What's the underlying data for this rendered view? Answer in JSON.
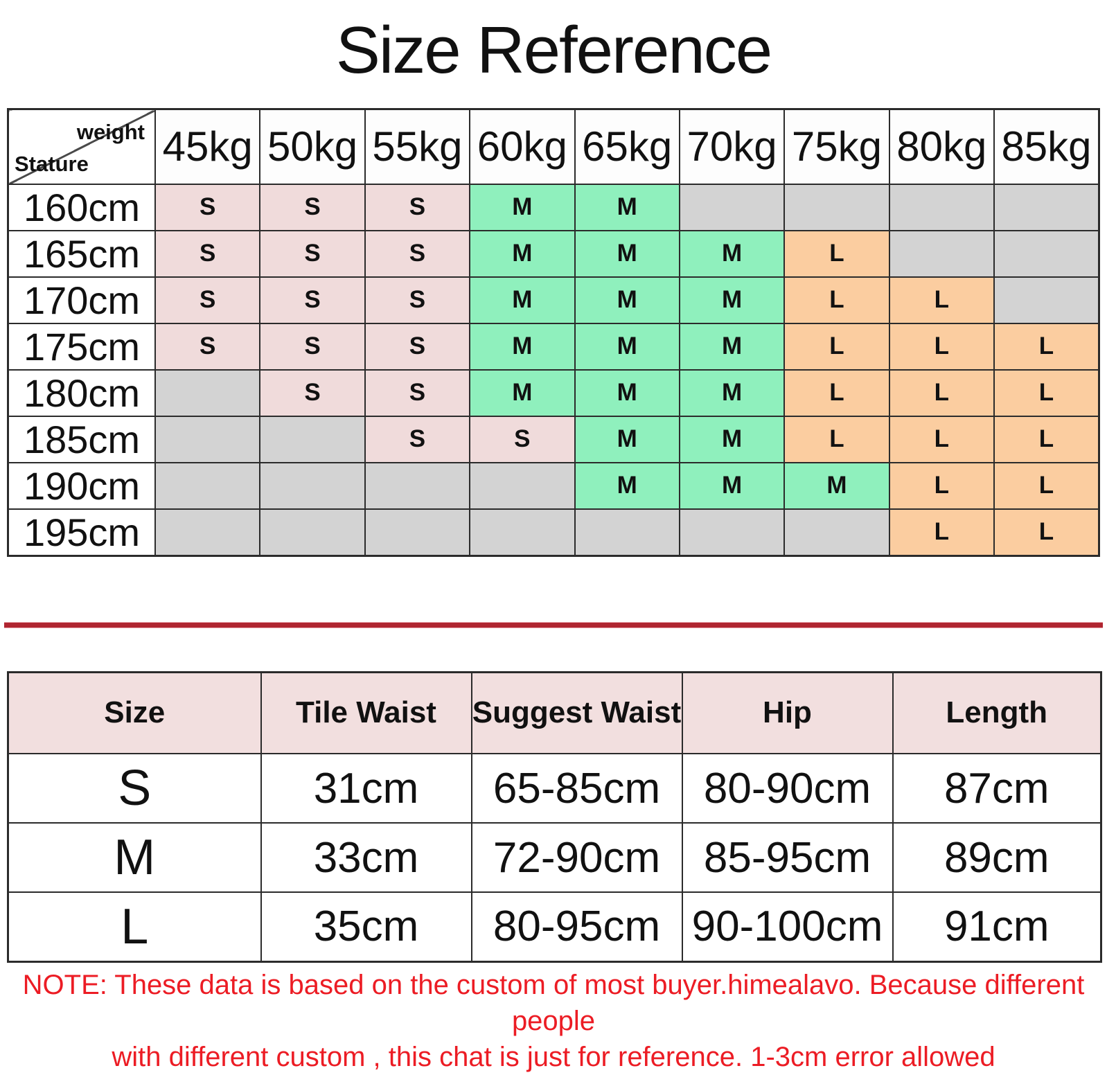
{
  "page": {
    "title": "Size Reference"
  },
  "colors": {
    "pink": "#f0dbdb",
    "green": "#8ff0bd",
    "orange": "#fbcda0",
    "gray": "#d3d3d3",
    "white": "#ffffff",
    "header_pink": "#f2dfdf",
    "border": "#2b2b2b",
    "red": "#b02530",
    "note_red": "#ec1c24"
  },
  "chart_data": [
    {
      "type": "table",
      "title": "Size Reference",
      "corner": {
        "top_right": "weight",
        "bottom_left": "Stature"
      },
      "columns": [
        "45kg",
        "50kg",
        "55kg",
        "60kg",
        "65kg",
        "70kg",
        "75kg",
        "80kg",
        "85kg"
      ],
      "rows": [
        {
          "stature": "160cm",
          "cells": [
            {
              "label": "S",
              "color": "pink"
            },
            {
              "label": "S",
              "color": "pink"
            },
            {
              "label": "S",
              "color": "pink"
            },
            {
              "label": "M",
              "color": "green"
            },
            {
              "label": "M",
              "color": "green"
            },
            {
              "label": "",
              "color": "gray"
            },
            {
              "label": "",
              "color": "gray"
            },
            {
              "label": "",
              "color": "gray"
            },
            {
              "label": "",
              "color": "gray"
            }
          ]
        },
        {
          "stature": "165cm",
          "cells": [
            {
              "label": "S",
              "color": "pink"
            },
            {
              "label": "S",
              "color": "pink"
            },
            {
              "label": "S",
              "color": "pink"
            },
            {
              "label": "M",
              "color": "green"
            },
            {
              "label": "M",
              "color": "green"
            },
            {
              "label": "M",
              "color": "green"
            },
            {
              "label": "L",
              "color": "orange"
            },
            {
              "label": "",
              "color": "gray"
            },
            {
              "label": "",
              "color": "gray"
            }
          ]
        },
        {
          "stature": "170cm",
          "cells": [
            {
              "label": "S",
              "color": "pink"
            },
            {
              "label": "S",
              "color": "pink"
            },
            {
              "label": "S",
              "color": "pink"
            },
            {
              "label": "M",
              "color": "green"
            },
            {
              "label": "M",
              "color": "green"
            },
            {
              "label": "M",
              "color": "green"
            },
            {
              "label": "L",
              "color": "orange"
            },
            {
              "label": "L",
              "color": "orange"
            },
            {
              "label": "",
              "color": "gray"
            }
          ]
        },
        {
          "stature": "175cm",
          "cells": [
            {
              "label": "S",
              "color": "pink"
            },
            {
              "label": "S",
              "color": "pink"
            },
            {
              "label": "S",
              "color": "pink"
            },
            {
              "label": "M",
              "color": "green"
            },
            {
              "label": "M",
              "color": "green"
            },
            {
              "label": "M",
              "color": "green"
            },
            {
              "label": "L",
              "color": "orange"
            },
            {
              "label": "L",
              "color": "orange"
            },
            {
              "label": "L",
              "color": "orange"
            }
          ]
        },
        {
          "stature": "180cm",
          "cells": [
            {
              "label": "",
              "color": "gray"
            },
            {
              "label": "S",
              "color": "pink"
            },
            {
              "label": "S",
              "color": "pink"
            },
            {
              "label": "M",
              "color": "green"
            },
            {
              "label": "M",
              "color": "green"
            },
            {
              "label": "M",
              "color": "green"
            },
            {
              "label": "L",
              "color": "orange"
            },
            {
              "label": "L",
              "color": "orange"
            },
            {
              "label": "L",
              "color": "orange"
            }
          ]
        },
        {
          "stature": "185cm",
          "cells": [
            {
              "label": "",
              "color": "gray"
            },
            {
              "label": "",
              "color": "gray"
            },
            {
              "label": "S",
              "color": "pink"
            },
            {
              "label": "S",
              "color": "pink"
            },
            {
              "label": "M",
              "color": "green"
            },
            {
              "label": "M",
              "color": "green"
            },
            {
              "label": "L",
              "color": "orange"
            },
            {
              "label": "L",
              "color": "orange"
            },
            {
              "label": "L",
              "color": "orange"
            }
          ]
        },
        {
          "stature": "190cm",
          "cells": [
            {
              "label": "",
              "color": "gray"
            },
            {
              "label": "",
              "color": "gray"
            },
            {
              "label": "",
              "color": "gray"
            },
            {
              "label": "",
              "color": "gray"
            },
            {
              "label": "M",
              "color": "green"
            },
            {
              "label": "M",
              "color": "green"
            },
            {
              "label": "M",
              "color": "green"
            },
            {
              "label": "L",
              "color": "orange"
            },
            {
              "label": "L",
              "color": "orange"
            }
          ]
        },
        {
          "stature": "195cm",
          "cells": [
            {
              "label": "",
              "color": "gray"
            },
            {
              "label": "",
              "color": "gray"
            },
            {
              "label": "",
              "color": "gray"
            },
            {
              "label": "",
              "color": "gray"
            },
            {
              "label": "",
              "color": "gray"
            },
            {
              "label": "",
              "color": "gray"
            },
            {
              "label": "",
              "color": "gray"
            },
            {
              "label": "L",
              "color": "orange"
            },
            {
              "label": "L",
              "color": "orange"
            }
          ]
        }
      ]
    },
    {
      "type": "table",
      "headers": [
        "Size",
        "Tile Waist",
        "Suggest Waist",
        "Hip",
        "Length"
      ],
      "rows": [
        [
          "S",
          "31cm",
          "65-85cm",
          "80-90cm",
          "87cm"
        ],
        [
          "M",
          "33cm",
          "72-90cm",
          "85-95cm",
          "89cm"
        ],
        [
          "L",
          "35cm",
          "80-95cm",
          "90-100cm",
          "91cm"
        ]
      ]
    }
  ],
  "note": {
    "line1": "NOTE: These data is based on the custom of most buyer.himealavo. Because different people",
    "line2": "with different custom , this chat is just for reference. 1-3cm error allowed"
  }
}
